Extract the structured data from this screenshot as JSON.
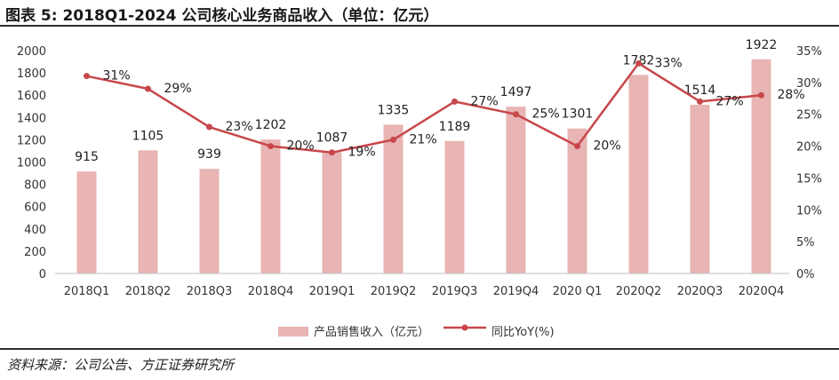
{
  "header": {
    "title": "图表 5:  2018Q1-2024 公司核心业务商品收入（单位：亿元）"
  },
  "footer": {
    "source": "资料来源：公司公告、方正证券研究所"
  },
  "chart_data": {
    "type": "bar",
    "categories": [
      "2018Q1",
      "2018Q2",
      "2018Q3",
      "2018Q4",
      "2019Q1",
      "2019Q2",
      "2019Q3",
      "2019Q4",
      "2020 Q1",
      "2020Q2",
      "2020Q3",
      "2020Q4"
    ],
    "series": [
      {
        "name": "产品销售收入（亿元）",
        "kind": "bar",
        "axis": "left",
        "values": [
          915,
          1105,
          939,
          1202,
          1087,
          1335,
          1189,
          1497,
          1301,
          1782,
          1514,
          1922
        ],
        "labels": [
          "915",
          "1105",
          "939",
          "1202",
          "1087",
          "1335",
          "1189",
          "1497",
          "1301",
          "1782",
          "1514",
          "1922"
        ],
        "color": "#e8b4b4"
      },
      {
        "name": "同比YoY(%)",
        "kind": "line",
        "axis": "right",
        "values": [
          31,
          29,
          23,
          20,
          19,
          21,
          27,
          25,
          20,
          33,
          27,
          28
        ],
        "labels": [
          "31%",
          "29%",
          "23%",
          "20%",
          "19%",
          "21%",
          "27%",
          "25%",
          "20%",
          "33%",
          "27%",
          "28%"
        ],
        "color": "#c8474b"
      }
    ],
    "y_left": {
      "min": 0,
      "max": 2000,
      "ticks": [
        "0",
        "200",
        "400",
        "600",
        "800",
        "1000",
        "1200",
        "1400",
        "1600",
        "1800",
        "2000"
      ]
    },
    "y_right": {
      "min": 0,
      "max": 35,
      "ticks": [
        "0%",
        "5%",
        "10%",
        "15%",
        "20%",
        "25%",
        "30%",
        "35%"
      ]
    },
    "grid": false,
    "legend_position": "bottom"
  }
}
